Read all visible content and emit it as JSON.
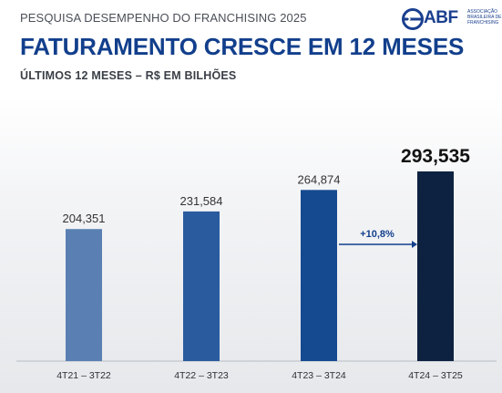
{
  "header": {
    "kicker": "PESQUISA DESEMPENHO DO FRANCHISING 2025",
    "title": "FATURAMENTO CRESCE EM 12 MESES",
    "subtitle": "ÚLTIMOS 12 MESES – R$ EM BILHÕES"
  },
  "logo": {
    "acronym": "ABF",
    "full_name": "ASSOCIAÇÃO BRASILEIRA DE FRANCHISING"
  },
  "chart_data": {
    "type": "bar",
    "title": "FATURAMENTO CRESCE EM 12 MESES",
    "subtitle": "ÚLTIMOS 12 MESES – R$ EM BILHÕES",
    "categories": [
      "4T21 – 3T22",
      "4T22 – 3T23",
      "4T23 – 3T24",
      "4T24 – 3T25"
    ],
    "values": [
      204.351,
      231.584,
      264.874,
      293.535
    ],
    "value_labels": [
      "204,351",
      "231,584",
      "264,874",
      "293,535"
    ],
    "colors": [
      "#5a80b3",
      "#2a5b9e",
      "#154a91",
      "#0d2240"
    ],
    "ylim": [
      0,
      293.535
    ],
    "grid": false,
    "annotation": {
      "text": "+10,8%",
      "between": [
        2,
        3
      ]
    }
  }
}
